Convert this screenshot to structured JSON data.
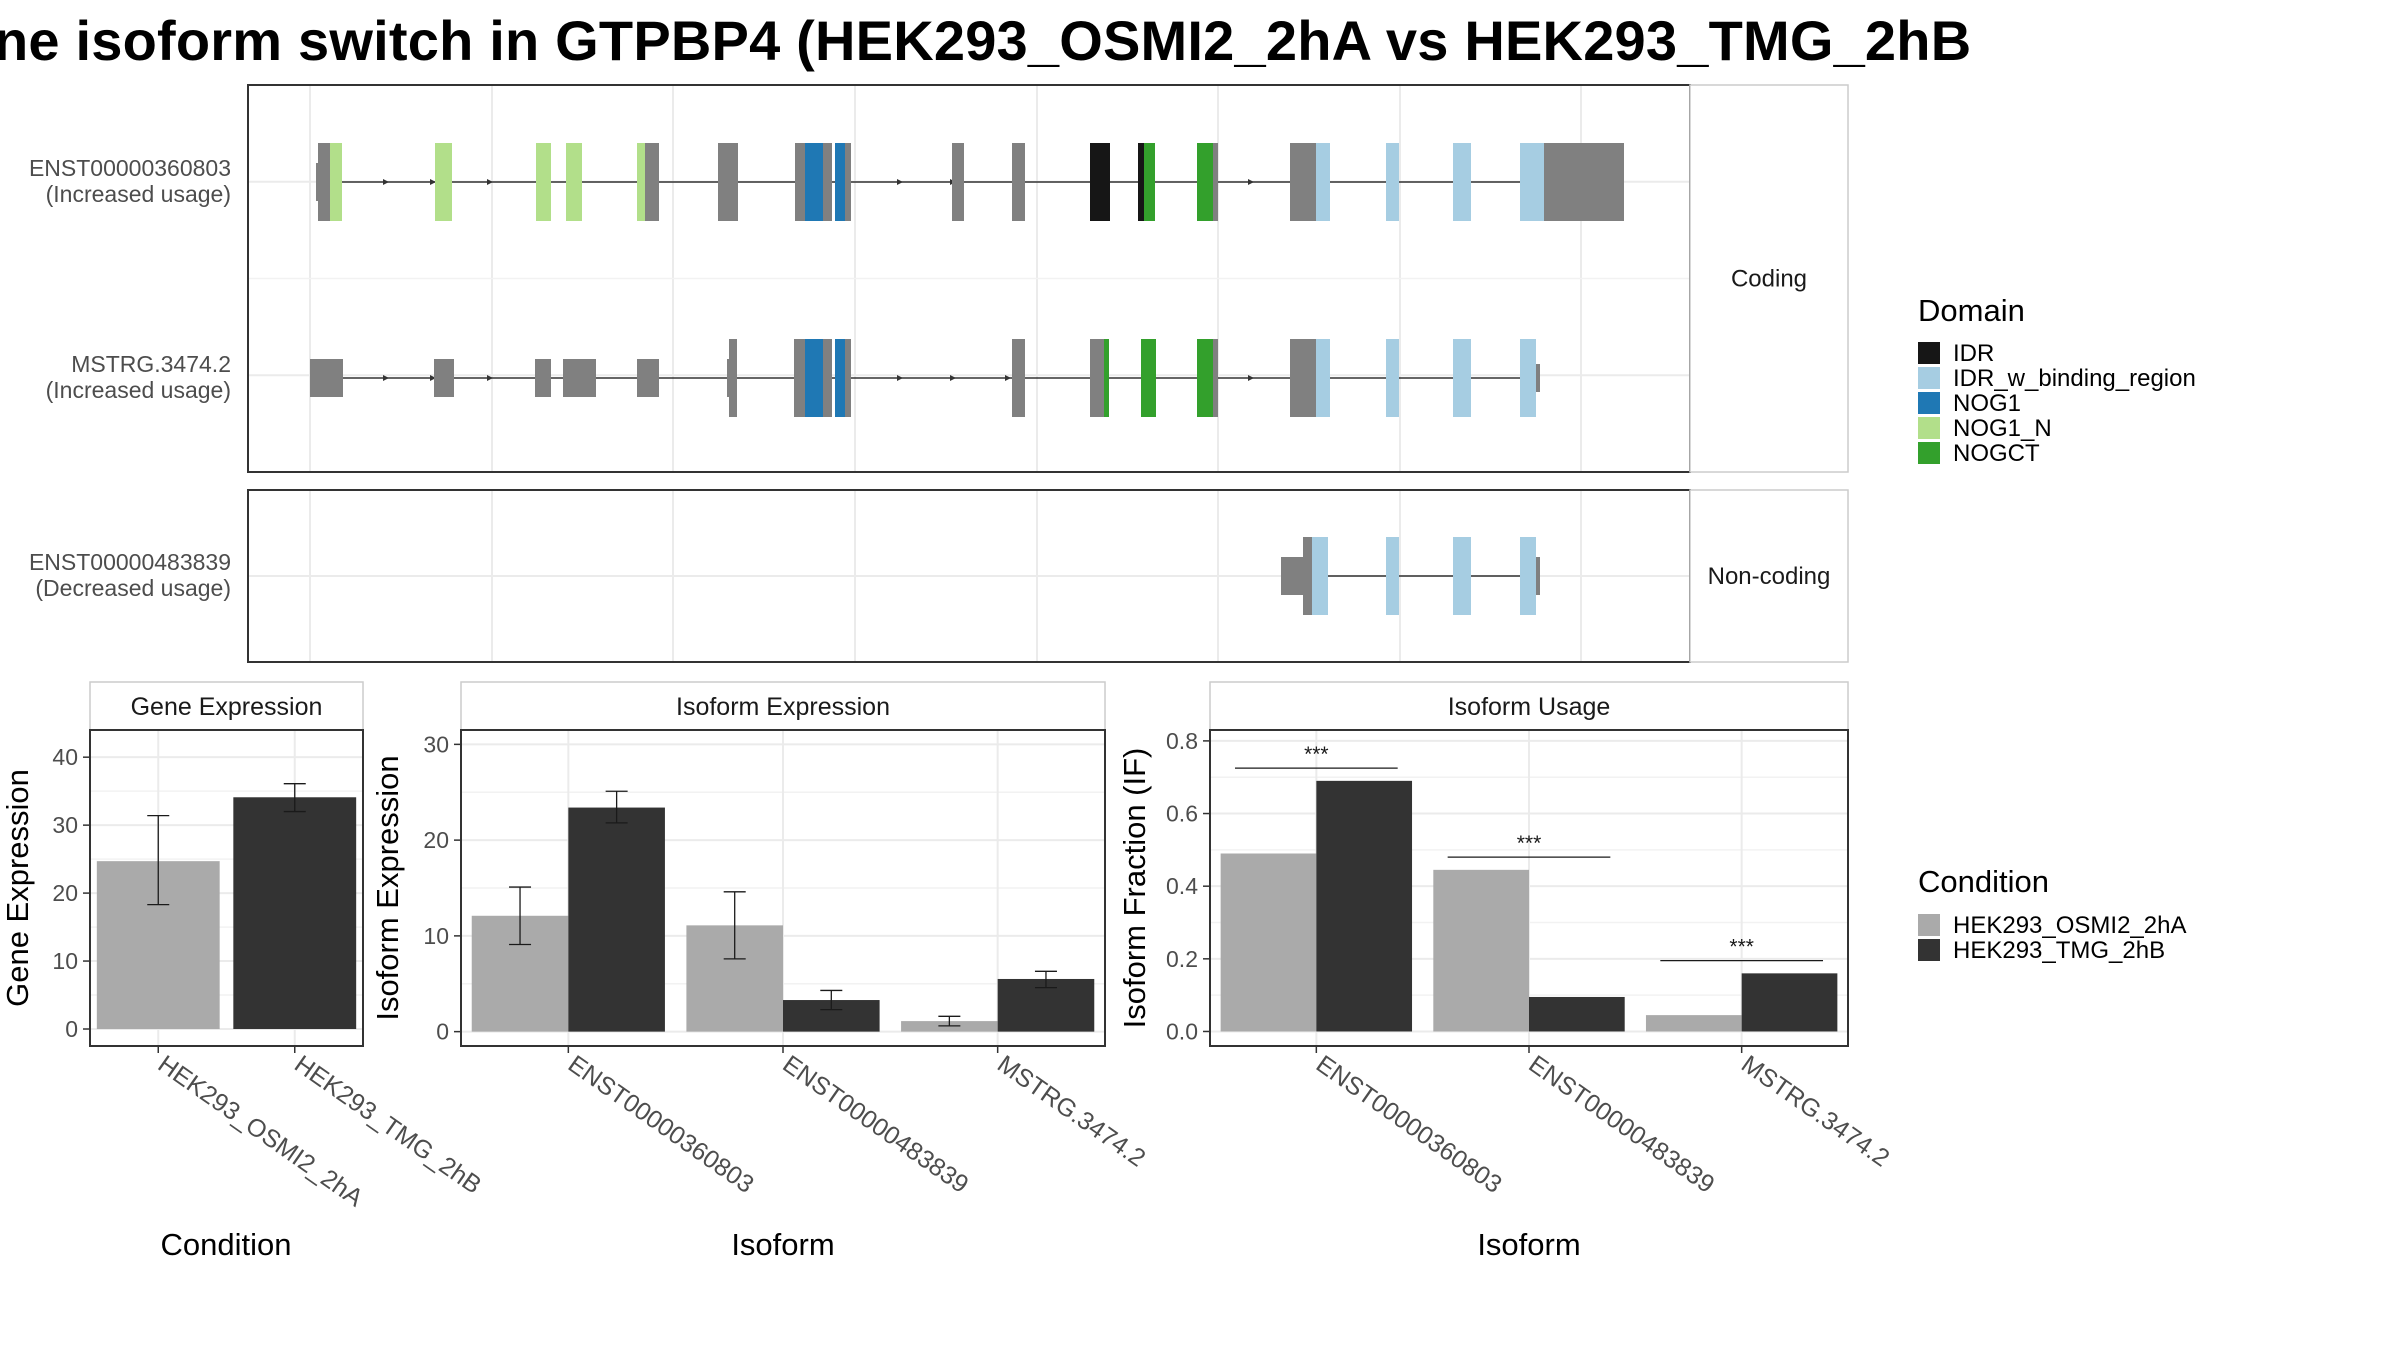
{
  "title": "ne isoform switch in GTPBP4 (HEK293_OSMI2_2hA vs HEK293_TMG_2hB",
  "colors": {
    "exon_default": "#808080",
    "IDR": "#161616",
    "IDR_w_binding_region": "#a6cde2",
    "NOG1": "#1f78b4",
    "NOG1_N": "#b2df8a",
    "NOGCT": "#33a02c",
    "condition_A": "#aaaaaa",
    "condition_B": "#333333"
  },
  "structure": {
    "panels": [
      {
        "strip": "Coding",
        "isoforms": [
          {
            "name": "ENST00000360803",
            "usage_label": "(Increased usage)"
          },
          {
            "name": "MSTRG.3474.2",
            "usage_label": "(Increased usage)"
          }
        ]
      },
      {
        "strip": "Non-coding",
        "isoforms": [
          {
            "name": "ENST00000483839",
            "usage_label": "(Decreased usage)"
          }
        ]
      }
    ]
  },
  "legend_domain": {
    "title": "Domain",
    "items": [
      {
        "label": "IDR",
        "color_key": "IDR"
      },
      {
        "label": "IDR_w_binding_region",
        "color_key": "IDR_w_binding_region"
      },
      {
        "label": "NOG1",
        "color_key": "NOG1"
      },
      {
        "label": "NOG1_N",
        "color_key": "NOG1_N"
      },
      {
        "label": "NOGCT",
        "color_key": "NOGCT"
      }
    ]
  },
  "legend_condition": {
    "title": "Condition",
    "items": [
      {
        "label": "HEK293_OSMI2_2hA",
        "color_key": "condition_A"
      },
      {
        "label": "HEK293_TMG_2hB",
        "color_key": "condition_B"
      }
    ]
  },
  "chart_data": [
    {
      "type": "bar",
      "title": "Gene Expression",
      "xlabel": "Condition",
      "ylabel": "Gene Expression",
      "categories": [
        "HEK293_OSMI2_2hA",
        "HEK293_TMG_2hB"
      ],
      "series": [
        {
          "name": "HEK293_OSMI2_2hA",
          "values": [
            24.7,
            null
          ],
          "error_low": [
            18.3,
            null
          ],
          "error_high": [
            31.4,
            null
          ]
        },
        {
          "name": "HEK293_TMG_2hB",
          "values": [
            null,
            34.1
          ],
          "error_low": [
            null,
            32.0
          ],
          "error_high": [
            null,
            36.1
          ]
        }
      ],
      "yticks": [
        0,
        10,
        20,
        30,
        40
      ],
      "ylim": [
        -2.5,
        44
      ]
    },
    {
      "type": "bar",
      "title": "Isoform Expression",
      "xlabel": "Isoform",
      "ylabel": "Isoform Expression",
      "categories": [
        "ENST00000360803",
        "ENST00000483839",
        "MSTRG.3474.2"
      ],
      "series": [
        {
          "name": "HEK293_OSMI2_2hA",
          "values": [
            12.1,
            11.1,
            1.1
          ],
          "error_low": [
            9.1,
            7.6,
            0.6
          ],
          "error_high": [
            15.1,
            14.6,
            1.6
          ]
        },
        {
          "name": "HEK293_TMG_2hB",
          "values": [
            23.4,
            3.3,
            5.5
          ],
          "error_low": [
            21.8,
            2.3,
            4.6
          ],
          "error_high": [
            25.1,
            4.3,
            6.3
          ]
        }
      ],
      "yticks": [
        0,
        10,
        20,
        30
      ],
      "ylim": [
        -1.5,
        31.5
      ]
    },
    {
      "type": "bar",
      "title": "Isoform Usage",
      "xlabel": "Isoform",
      "ylabel": "Isoform Fraction (IF)",
      "categories": [
        "ENST00000360803",
        "ENST00000483839",
        "MSTRG.3474.2"
      ],
      "series": [
        {
          "name": "HEK293_OSMI2_2hA",
          "values": [
            0.49,
            0.445,
            0.045
          ]
        },
        {
          "name": "HEK293_TMG_2hB",
          "values": [
            0.69,
            0.095,
            0.16
          ]
        }
      ],
      "significance": [
        {
          "category_index": 0,
          "label": "***",
          "y": 0.725
        },
        {
          "category_index": 1,
          "label": "***",
          "y": 0.48
        },
        {
          "category_index": 2,
          "label": "***",
          "y": 0.195
        }
      ],
      "yticks": [
        0.0,
        0.2,
        0.4,
        0.6,
        0.8
      ],
      "ytick_labels": [
        "0.0",
        "0.2",
        "0.4",
        "0.6",
        "0.8"
      ],
      "ylim": [
        -0.04,
        0.83
      ]
    }
  ]
}
